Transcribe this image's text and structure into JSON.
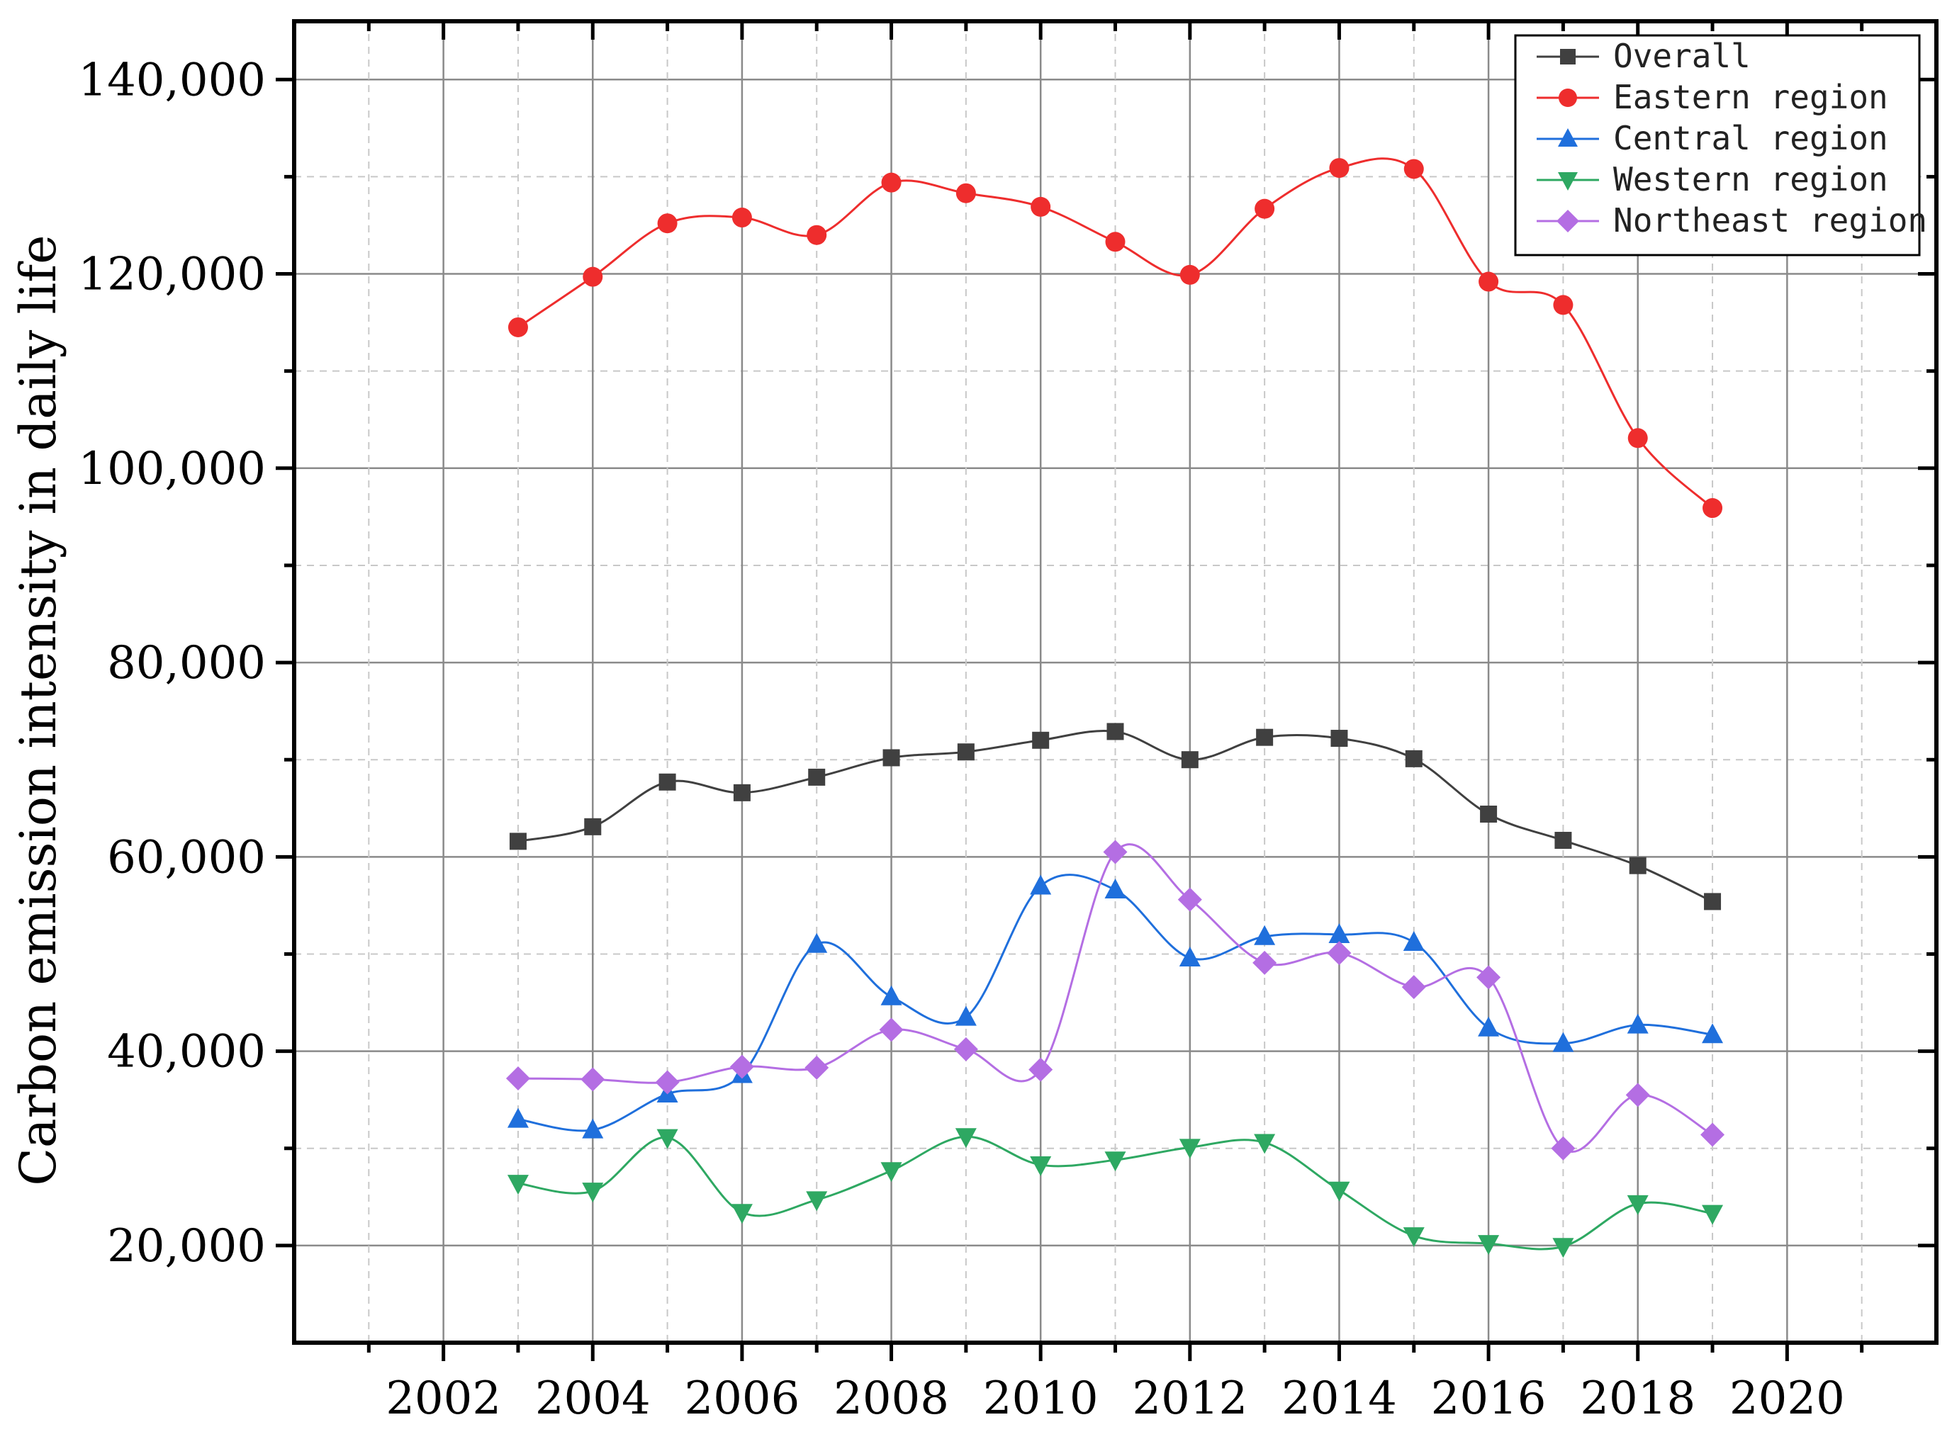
{
  "chart_data": {
    "type": "line",
    "title": "",
    "xlabel": "",
    "ylabel": "Carbon emission intensity in daily life",
    "xlim": [
      2000,
      2022
    ],
    "ylim": [
      10000,
      146000
    ],
    "x_ticks": [
      2002,
      2004,
      2006,
      2008,
      2010,
      2012,
      2014,
      2016,
      2018,
      2020
    ],
    "x_tick_labels": [
      "2002",
      "2004",
      "2006",
      "2008",
      "2010",
      "2012",
      "2014",
      "2016",
      "2018",
      "2020"
    ],
    "y_ticks": [
      20000,
      40000,
      60000,
      80000,
      100000,
      120000,
      140000
    ],
    "y_tick_labels": [
      "20,000",
      "40,000",
      "60,000",
      "80,000",
      "100,000",
      "120,000",
      "140,000"
    ],
    "grid": true,
    "legend_position": "top-right",
    "x": [
      2003,
      2004,
      2005,
      2006,
      2007,
      2008,
      2009,
      2010,
      2011,
      2012,
      2013,
      2014,
      2015,
      2016,
      2017,
      2018,
      2019
    ],
    "series": [
      {
        "name": "Overall",
        "color": "#404040",
        "marker": "square",
        "values": [
          61600,
          63100,
          67700,
          66600,
          68200,
          70200,
          70800,
          72000,
          72900,
          70000,
          72300,
          72200,
          70100,
          64400,
          61700,
          59100,
          55400
        ]
      },
      {
        "name": "Eastern region",
        "color": "#ee2d2d",
        "marker": "circle",
        "values": [
          114500,
          119700,
          125200,
          125800,
          124000,
          129400,
          128300,
          126900,
          123300,
          119900,
          126700,
          130900,
          130800,
          119200,
          116800,
          103100,
          95900
        ]
      },
      {
        "name": "Central region",
        "color": "#1f6fdc",
        "marker": "triangle-up",
        "values": [
          33000,
          31900,
          35600,
          37600,
          51000,
          45600,
          43500,
          57000,
          56600,
          49600,
          51800,
          52000,
          51200,
          42400,
          40800,
          42700,
          41700
        ]
      },
      {
        "name": "Western region",
        "color": "#2ea862",
        "marker": "triangle-down",
        "values": [
          26400,
          25600,
          31100,
          23400,
          24700,
          27700,
          31200,
          28300,
          28800,
          30100,
          30600,
          25700,
          21000,
          20200,
          19900,
          24300,
          23300
        ]
      },
      {
        "name": "Northeast region",
        "color": "#b46ee3",
        "marker": "diamond",
        "values": [
          37200,
          37100,
          36800,
          38400,
          38300,
          42200,
          40200,
          38100,
          60500,
          55600,
          49100,
          50100,
          46600,
          47600,
          30000,
          35500,
          31400
        ]
      }
    ]
  }
}
